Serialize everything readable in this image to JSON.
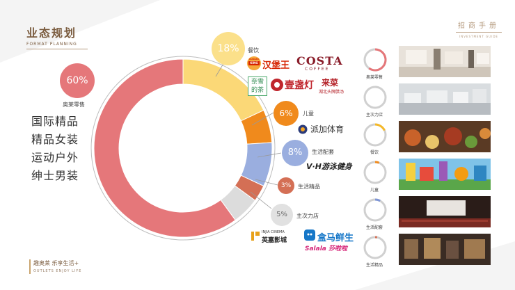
{
  "header": {
    "title": "业态规划",
    "subtitle": "FORMAT PLANNING"
  },
  "guide": {
    "title": "招商手册",
    "subtitle": "INVESTMENT GUIDE"
  },
  "footer": {
    "title": "趣奥莱 乐享生活+",
    "subtitle": "OUTLETS ENJOY LIFE"
  },
  "chart_data": {
    "type": "pie",
    "categories": [
      "奥莱零售",
      "餐饮",
      "儿童",
      "生活配套",
      "生活精品",
      "主次力店"
    ],
    "values": [
      60,
      18,
      6,
      8,
      3,
      5
    ],
    "value_labels": [
      "60%",
      "18%",
      "6%",
      "8%",
      "3%",
      "5%"
    ],
    "colors": [
      "#e5777a",
      "#fbd877",
      "#f08a1c",
      "#9aaedf",
      "#d46f55",
      "#dcdcdc"
    ]
  },
  "retail": {
    "value": "60%",
    "label": "奥莱零售",
    "categories": [
      "国际精品",
      "精品女装",
      "运动户外",
      "绅士男装"
    ]
  },
  "dining": {
    "value": "18%",
    "label": "餐饮",
    "brands": {
      "bk_top": "BURGER",
      "bk_bottom": "KING",
      "bk_cn": "汉堡王",
      "costa": "COSTA",
      "coffee": "COFFEE",
      "naixue_1": "奈雪",
      "naixue_2": "的茶",
      "yizhandeng": "壹盏灯",
      "laicai": "来菜",
      "laicai_sub": "湖北头牌腊汤"
    }
  },
  "kids": {
    "value": "6%",
    "label": "儿童",
    "brand": "派加体育"
  },
  "life": {
    "value": "8%",
    "label": "生活配套",
    "brand": "V·H游泳健身"
  },
  "boutique": {
    "value": "3%",
    "label": "生活精品"
  },
  "anchor": {
    "value": "5%",
    "label": "主次力店",
    "brands": {
      "inja_en": "INJIA CINEMA",
      "inja_cn": "英嘉影城",
      "hema": "盒马鲜生",
      "salala": "Salala 莎啦啦"
    }
  },
  "thumbnails": [
    {
      "label": "奥莱零售",
      "percent": 60
    },
    {
      "label": "主次力店",
      "percent": 5
    },
    {
      "label": "餐饮",
      "percent": 18
    },
    {
      "label": "儿童",
      "percent": 6
    },
    {
      "label": "生活配套",
      "percent": 8
    },
    {
      "label": "生活精品",
      "percent": 3
    }
  ]
}
